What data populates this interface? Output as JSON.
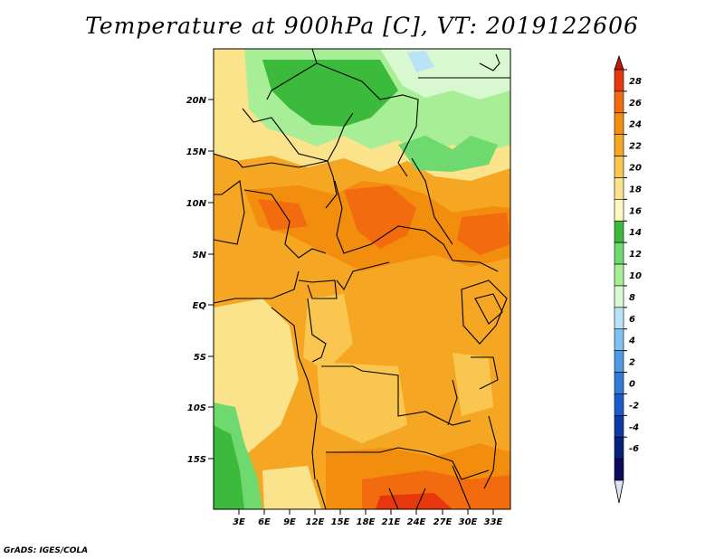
{
  "title": "Temperature at 900hPa [C], VT: 2019122606",
  "footer": "GrADS: IGES/COLA",
  "lat_labels": [
    "20N",
    "15N",
    "10N",
    "5N",
    "EQ",
    "5S",
    "10S",
    "15S"
  ],
  "lon_labels": [
    "3E",
    "6E",
    "9E",
    "12E",
    "15E",
    "18E",
    "21E",
    "24E",
    "27E",
    "30E",
    "33E"
  ],
  "colorbar": {
    "labels": [
      "28",
      "26",
      "24",
      "22",
      "20",
      "18",
      "16",
      "14",
      "12",
      "10",
      "8",
      "6",
      "4",
      "2",
      "0",
      "-2",
      "-4",
      "-6"
    ],
    "colors": [
      "#e7380d",
      "#f26c0f",
      "#f28d0d",
      "#f5a623",
      "#f9c64f",
      "#fbe38c",
      "#fef8c0",
      "#3cba3c",
      "#6ed96e",
      "#a8ee96",
      "#d8f8d0",
      "#b9e4f8",
      "#7fc1f0",
      "#4f9ae6",
      "#2f7bd9",
      "#1a5bc9",
      "#0d3aa6",
      "#07227d",
      "#0c0a5e"
    ],
    "top_color": "#c01808",
    "bottom_color": "#e0e0f6"
  }
}
